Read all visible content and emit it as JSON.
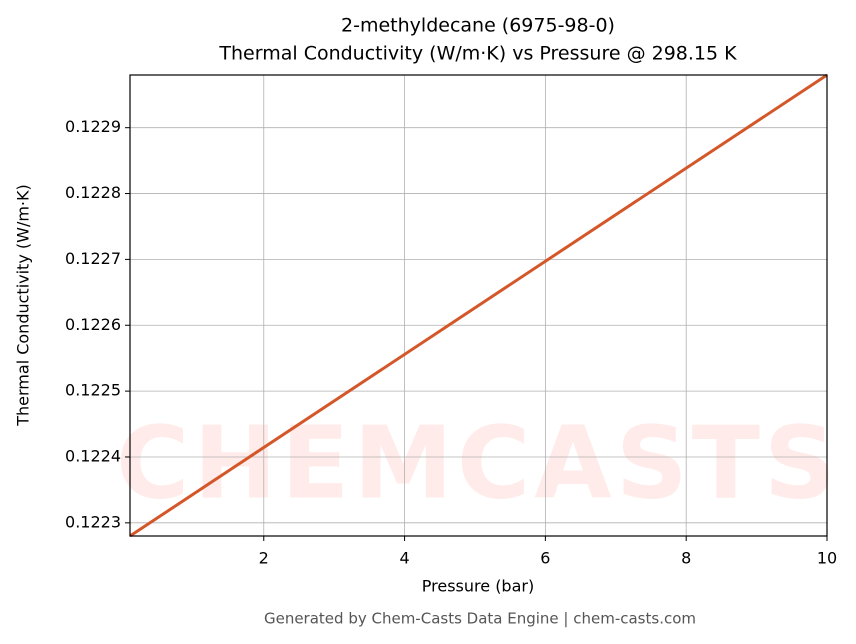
{
  "chart_data": {
    "type": "line",
    "title": "2-methyldecane (6975-98-0)",
    "subtitle": "Thermal Conductivity (W/m·K) vs Pressure @ 298.15 K",
    "x_label": "Pressure (bar)",
    "y_label": "Thermal Conductivity (W/m·K)",
    "footer": "Generated by Chem-Casts Data Engine | chem-casts.com",
    "watermark": "CHEMCASTS",
    "x": [
      0.1,
      10
    ],
    "series": [
      {
        "name": "Thermal Conductivity",
        "color": "#d4572a",
        "values": [
          0.12228,
          0.12298
        ]
      }
    ],
    "xlim": [
      0.1,
      10
    ],
    "xticks": [
      2,
      4,
      6,
      8,
      10
    ],
    "ylim": [
      0.12228,
      0.12298
    ],
    "yticks": [
      0.1223,
      0.1224,
      0.1225,
      0.1226,
      0.1227,
      0.1228,
      0.1229
    ],
    "grid": true
  }
}
